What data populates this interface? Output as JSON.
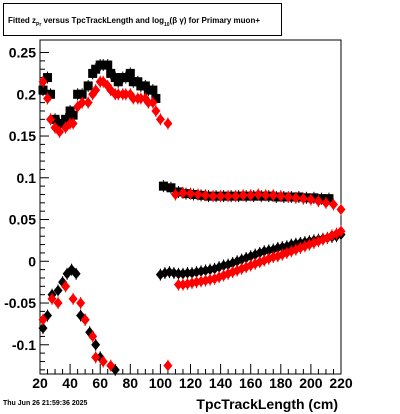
{
  "header": {
    "title_parts": [
      "Fitted ",
      "z",
      "Pr",
      " versus TpcTrackLength and log",
      "10",
      "(β γ) for Primary muon+"
    ]
  },
  "footer": {
    "date": "Thu Jun 26 21:59:36 2025"
  },
  "colors": {
    "series_black": "#000000",
    "series_red": "#ff0000"
  },
  "chart_data": {
    "type": "scatter",
    "title": "Fitted z Pr versus TpcTrackLength and log10(β γ) for Primary muon+",
    "xlabel": "TpcTrackLength (cm)",
    "ylabel": "",
    "xlim": [
      20,
      220
    ],
    "ylim": [
      -0.135,
      0.265
    ],
    "x_ticks": [
      20,
      40,
      60,
      80,
      100,
      120,
      140,
      160,
      180,
      200,
      220
    ],
    "y_ticks": [
      -0.1,
      -0.05,
      0,
      0.05,
      0.1,
      0.15,
      0.2,
      0.25
    ],
    "y_tick_labels": [
      "-0.1",
      "-0.05",
      "0",
      "0.05",
      "0.1",
      "0.15",
      "0.2",
      "0.25"
    ],
    "series": [
      {
        "color": "#000000",
        "marker": "square",
        "points": [
          [
            22,
            0.205
          ],
          [
            25,
            0.22
          ],
          [
            27,
            0.2
          ],
          [
            30,
            0.17
          ],
          [
            33,
            0.165
          ],
          [
            37,
            0.17
          ],
          [
            40,
            0.18
          ],
          [
            42,
            0.175
          ],
          [
            45,
            0.2
          ],
          [
            48,
            0.2
          ],
          [
            52,
            0.21
          ],
          [
            55,
            0.225
          ],
          [
            57,
            0.23
          ],
          [
            60,
            0.235
          ],
          [
            62,
            0.235
          ],
          [
            65,
            0.235
          ],
          [
            67,
            0.225
          ],
          [
            70,
            0.22
          ],
          [
            72,
            0.215
          ],
          [
            75,
            0.22
          ],
          [
            77,
            0.22
          ],
          [
            80,
            0.225
          ],
          [
            82,
            0.215
          ],
          [
            85,
            0.215
          ],
          [
            87,
            0.21
          ],
          [
            90,
            0.21
          ],
          [
            92,
            0.205
          ],
          [
            95,
            0.205
          ],
          [
            97,
            0.195
          ],
          [
            102,
            0.09
          ],
          [
            107,
            0.088
          ],
          [
            112,
            0.083
          ],
          [
            117,
            0.081
          ],
          [
            122,
            0.08
          ],
          [
            127,
            0.079
          ],
          [
            132,
            0.078
          ],
          [
            137,
            0.078
          ],
          [
            142,
            0.078
          ],
          [
            147,
            0.078
          ],
          [
            152,
            0.078
          ],
          [
            157,
            0.078
          ],
          [
            162,
            0.078
          ],
          [
            167,
            0.078
          ],
          [
            172,
            0.078
          ],
          [
            177,
            0.077
          ],
          [
            182,
            0.077
          ],
          [
            187,
            0.077
          ],
          [
            192,
            0.077
          ],
          [
            197,
            0.076
          ],
          [
            202,
            0.076
          ],
          [
            207,
            0.075
          ],
          [
            212,
            0.075
          ]
        ]
      },
      {
        "color": "#ff0000",
        "marker": "diamond",
        "points": [
          [
            22,
            0.215
          ],
          [
            25,
            0.195
          ],
          [
            27,
            0.17
          ],
          [
            30,
            0.16
          ],
          [
            33,
            0.155
          ],
          [
            37,
            0.16
          ],
          [
            40,
            0.165
          ],
          [
            42,
            0.165
          ],
          [
            45,
            0.185
          ],
          [
            48,
            0.19
          ],
          [
            52,
            0.19
          ],
          [
            55,
            0.2
          ],
          [
            57,
            0.205
          ],
          [
            60,
            0.215
          ],
          [
            62,
            0.215
          ],
          [
            65,
            0.21
          ],
          [
            67,
            0.205
          ],
          [
            70,
            0.2
          ],
          [
            72,
            0.2
          ],
          [
            75,
            0.2
          ],
          [
            77,
            0.2
          ],
          [
            80,
            0.2
          ],
          [
            82,
            0.195
          ],
          [
            85,
            0.195
          ],
          [
            87,
            0.195
          ],
          [
            90,
            0.195
          ],
          [
            92,
            0.19
          ],
          [
            95,
            0.19
          ],
          [
            97,
            0.18
          ],
          [
            100,
            0.17
          ],
          [
            105,
            0.165
          ],
          [
            110,
            0.08
          ],
          [
            115,
            0.082
          ],
          [
            120,
            0.081
          ],
          [
            125,
            0.08
          ],
          [
            130,
            0.079
          ],
          [
            135,
            0.078
          ],
          [
            140,
            0.078
          ],
          [
            145,
            0.078
          ],
          [
            150,
            0.078
          ],
          [
            155,
            0.079
          ],
          [
            160,
            0.079
          ],
          [
            165,
            0.08
          ],
          [
            170,
            0.079
          ],
          [
            175,
            0.079
          ],
          [
            180,
            0.078
          ],
          [
            185,
            0.077
          ],
          [
            190,
            0.076
          ],
          [
            195,
            0.075
          ],
          [
            200,
            0.074
          ],
          [
            205,
            0.072
          ],
          [
            210,
            0.07
          ],
          [
            215,
            0.068
          ],
          [
            220,
            0.062
          ]
        ]
      },
      {
        "color": "#000000",
        "marker": "diamond",
        "points": [
          [
            22,
            -0.08
          ],
          [
            25,
            -0.065
          ],
          [
            28,
            -0.04
          ],
          [
            32,
            -0.035
          ],
          [
            35,
            -0.025
          ],
          [
            38,
            -0.015
          ],
          [
            41,
            -0.01
          ],
          [
            44,
            -0.015
          ],
          [
            47,
            -0.065
          ],
          [
            50,
            -0.07
          ],
          [
            53,
            -0.085
          ],
          [
            57,
            -0.1
          ],
          [
            60,
            -0.115
          ],
          [
            70,
            -0.13
          ],
          [
            100,
            -0.016
          ],
          [
            103,
            -0.014
          ],
          [
            106,
            -0.013
          ],
          [
            109,
            -0.014
          ],
          [
            112,
            -0.015
          ],
          [
            115,
            -0.015
          ],
          [
            118,
            -0.014
          ],
          [
            121,
            -0.014
          ],
          [
            124,
            -0.013
          ],
          [
            127,
            -0.012
          ],
          [
            130,
            -0.011
          ],
          [
            133,
            -0.01
          ],
          [
            136,
            -0.009
          ],
          [
            139,
            -0.007
          ],
          [
            142,
            -0.005
          ],
          [
            145,
            -0.004
          ],
          [
            148,
            -0.002
          ],
          [
            151,
            0.0
          ],
          [
            154,
            0.002
          ],
          [
            157,
            0.004
          ],
          [
            160,
            0.006
          ],
          [
            163,
            0.008
          ],
          [
            166,
            0.01
          ],
          [
            169,
            0.012
          ],
          [
            172,
            0.013
          ],
          [
            175,
            0.014
          ],
          [
            178,
            0.016
          ],
          [
            181,
            0.017
          ],
          [
            184,
            0.018
          ],
          [
            187,
            0.02
          ],
          [
            190,
            0.021
          ],
          [
            193,
            0.022
          ],
          [
            196,
            0.023
          ],
          [
            199,
            0.024
          ],
          [
            202,
            0.025
          ],
          [
            205,
            0.026
          ],
          [
            208,
            0.027
          ],
          [
            211,
            0.028
          ],
          [
            214,
            0.029
          ],
          [
            217,
            0.03
          ],
          [
            220,
            0.032
          ]
        ]
      },
      {
        "color": "#ff0000",
        "marker": "diamond",
        "points": [
          [
            22,
            -0.07
          ],
          [
            28,
            -0.045
          ],
          [
            32,
            -0.05
          ],
          [
            37,
            -0.03
          ],
          [
            42,
            -0.045
          ],
          [
            47,
            -0.05
          ],
          [
            50,
            -0.07
          ],
          [
            55,
            -0.09
          ],
          [
            57,
            -0.115
          ],
          [
            62,
            -0.12
          ],
          [
            67,
            -0.125
          ],
          [
            105,
            -0.125
          ],
          [
            112,
            -0.028
          ],
          [
            115,
            -0.028
          ],
          [
            118,
            -0.027
          ],
          [
            121,
            -0.026
          ],
          [
            124,
            -0.025
          ],
          [
            127,
            -0.024
          ],
          [
            130,
            -0.023
          ],
          [
            133,
            -0.022
          ],
          [
            136,
            -0.021
          ],
          [
            139,
            -0.019
          ],
          [
            142,
            -0.017
          ],
          [
            145,
            -0.015
          ],
          [
            148,
            -0.013
          ],
          [
            151,
            -0.011
          ],
          [
            154,
            -0.009
          ],
          [
            157,
            -0.007
          ],
          [
            160,
            -0.005
          ],
          [
            163,
            -0.003
          ],
          [
            166,
            -0.001
          ],
          [
            169,
            0.001
          ],
          [
            172,
            0.003
          ],
          [
            175,
            0.005
          ],
          [
            178,
            0.006
          ],
          [
            181,
            0.008
          ],
          [
            184,
            0.01
          ],
          [
            187,
            0.012
          ],
          [
            190,
            0.014
          ],
          [
            193,
            0.016
          ],
          [
            196,
            0.018
          ],
          [
            199,
            0.02
          ],
          [
            202,
            0.022
          ],
          [
            205,
            0.024
          ],
          [
            208,
            0.026
          ],
          [
            211,
            0.028
          ],
          [
            214,
            0.031
          ],
          [
            217,
            0.033
          ],
          [
            220,
            0.036
          ]
        ]
      }
    ]
  }
}
